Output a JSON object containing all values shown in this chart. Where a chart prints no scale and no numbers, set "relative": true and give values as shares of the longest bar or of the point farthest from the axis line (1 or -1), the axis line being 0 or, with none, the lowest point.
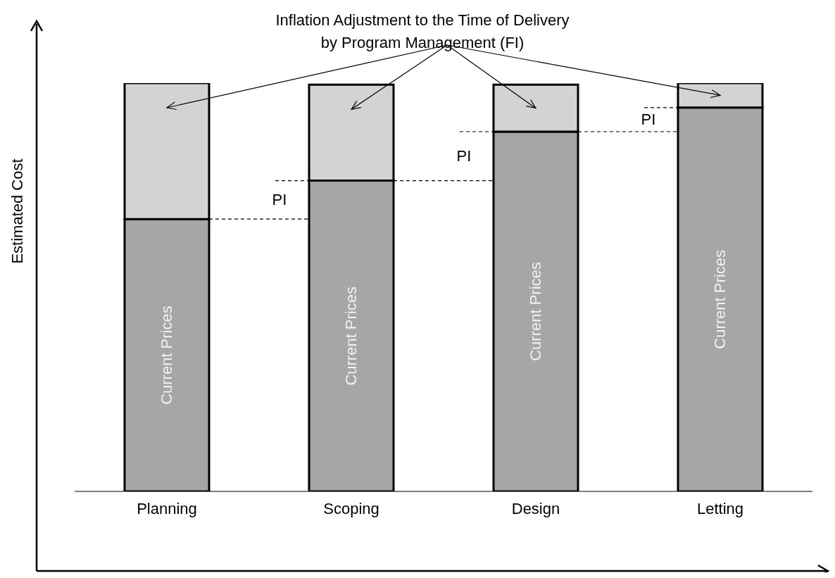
{
  "chart_data": {
    "type": "bar",
    "stacked": true,
    "relative": true,
    "ylabel": "Estimated Cost",
    "categories": [
      "Planning",
      "Scoping",
      "Design",
      "Letting"
    ],
    "series": [
      {
        "name": "Current Prices",
        "color": "#a6a6a6",
        "values": [
          0.667,
          0.761,
          0.881,
          0.94
        ]
      },
      {
        "name": "Inflation Adjustment to the Time of Delivery by Program Management (FI)",
        "color": "#d3d3d3",
        "values": [
          0.333,
          0.235,
          0.115,
          0.06
        ]
      }
    ],
    "annotations": [
      "PI",
      "PI",
      "PI"
    ]
  }
}
